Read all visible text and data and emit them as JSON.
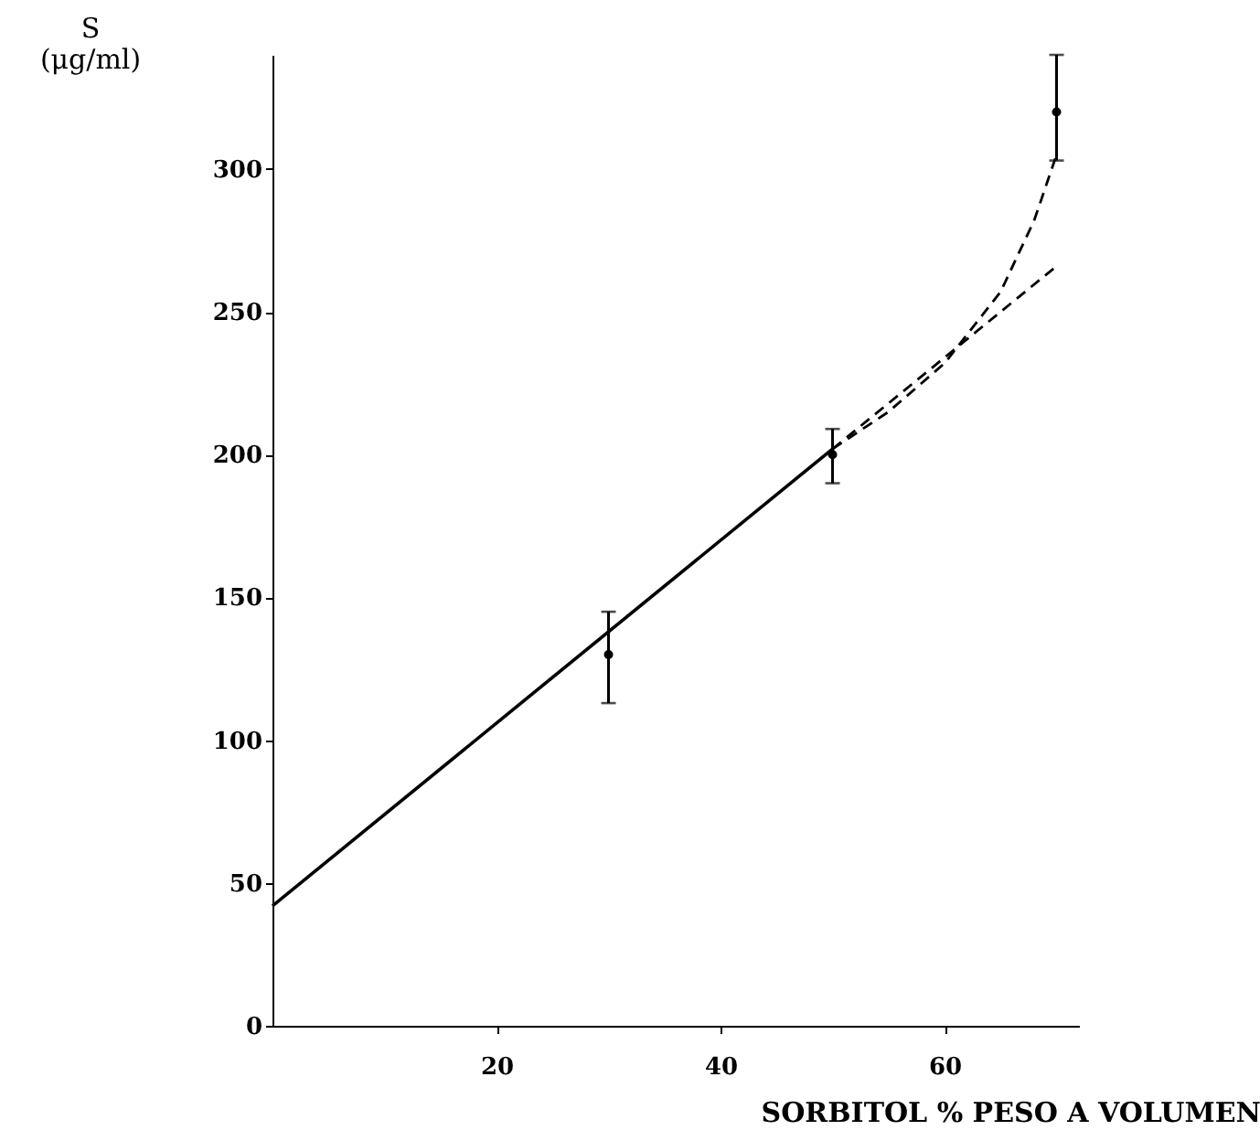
{
  "chart_data": {
    "type": "scatter",
    "xlabel": "SORBITOL % PESO A VOLUMEN",
    "ylabel": "S\n(μg/ml)",
    "xlim": [
      0,
      72
    ],
    "ylim": [
      0,
      340
    ],
    "xticks": [
      20,
      40,
      60
    ],
    "yticks": [
      0,
      50,
      100,
      150,
      200,
      250,
      300
    ],
    "grid": false,
    "series": [
      {
        "type": "line",
        "line_style": "solid",
        "marker": "none",
        "color": "#000000",
        "x": [
          0,
          50
        ],
        "values": [
          42,
          202
        ]
      },
      {
        "type": "line",
        "line_style": "dashed",
        "marker": "none",
        "color": "#000000",
        "x": [
          50,
          70
        ],
        "values": [
          202,
          266
        ]
      },
      {
        "type": "line",
        "line_style": "dashed",
        "marker": "none",
        "color": "#000000",
        "x": [
          50,
          55,
          60,
          65,
          68,
          70
        ],
        "values": [
          202,
          215,
          232,
          257,
          282,
          305
        ]
      },
      {
        "type": "scatter",
        "marker": "circle",
        "color": "#000000",
        "x": [
          30,
          50,
          70
        ],
        "values": [
          130,
          200,
          320
        ],
        "errors": [
          [
            113,
            145
          ],
          [
            190,
            209
          ],
          [
            303,
            340
          ]
        ]
      }
    ]
  }
}
